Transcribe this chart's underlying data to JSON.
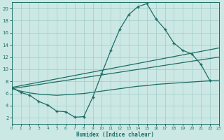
{
  "xlabel": "Humidex (Indice chaleur)",
  "xlim": [
    0,
    23
  ],
  "ylim": [
    1,
    21
  ],
  "yticks": [
    2,
    4,
    6,
    8,
    10,
    12,
    14,
    16,
    18,
    20
  ],
  "xticks": [
    0,
    1,
    2,
    3,
    4,
    5,
    6,
    7,
    8,
    9,
    10,
    11,
    12,
    13,
    14,
    15,
    16,
    17,
    18,
    19,
    20,
    21,
    22,
    23
  ],
  "bg_color": "#cce8e4",
  "grid_color": "#a0ccc8",
  "line_color": "#1a6e66",
  "curve1_x": [
    0,
    1,
    2,
    3,
    4,
    5,
    6,
    7,
    8,
    9,
    10,
    11,
    12,
    13,
    14,
    15,
    16,
    17,
    18,
    19,
    20,
    21,
    22
  ],
  "curve1_y": [
    7.0,
    6.2,
    5.7,
    4.7,
    4.1,
    3.1,
    3.0,
    2.1,
    2.2,
    5.4,
    9.3,
    13.1,
    16.6,
    19.0,
    20.3,
    20.8,
    18.3,
    16.6,
    14.3,
    13.1,
    12.5,
    10.8,
    8.1
  ],
  "line2_x": [
    0,
    23
  ],
  "line2_y": [
    7.0,
    13.5
  ],
  "line3_x": [
    0,
    23
  ],
  "line3_y": [
    6.8,
    12.0
  ],
  "curve4_x": [
    0,
    1,
    2,
    3,
    4,
    5,
    6,
    7,
    8,
    9,
    10,
    11,
    12,
    13,
    14,
    15,
    16,
    17,
    18,
    19,
    20,
    21,
    22,
    23
  ],
  "curve4_y": [
    6.8,
    6.4,
    6.1,
    5.9,
    5.8,
    5.7,
    5.8,
    5.9,
    6.0,
    6.2,
    6.4,
    6.6,
    6.8,
    7.0,
    7.2,
    7.3,
    7.5,
    7.6,
    7.7,
    7.8,
    7.9,
    8.0,
    8.1,
    8.2
  ]
}
